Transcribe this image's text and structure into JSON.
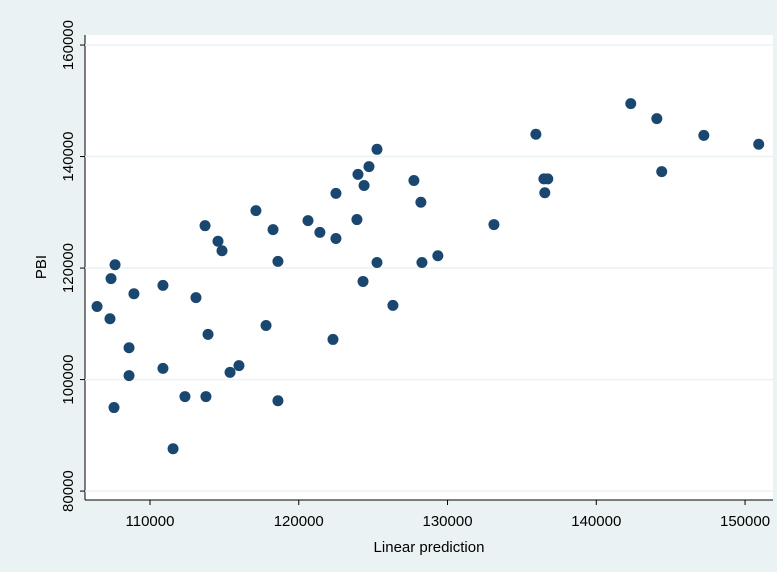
{
  "chart_data": {
    "type": "scatter",
    "x_label": "Linear prediction",
    "y_label": "PBI",
    "color": "#1a476f",
    "grid": true,
    "xlim": [
      105630,
      151880
    ],
    "ylim": [
      78400,
      161800
    ],
    "xticks": [
      110000,
      120000,
      130000,
      140000,
      150000
    ],
    "yticks": [
      80000,
      100000,
      120000,
      140000,
      160000
    ],
    "x": [
      106440,
      107380,
      107310,
      107650,
      107580,
      108920,
      108590,
      108590,
      110870,
      110870,
      111550,
      112350,
      113090,
      113700,
      113900,
      113760,
      114570,
      114840,
      115380,
      115980,
      117120,
      117800,
      118270,
      118600,
      118600,
      120620,
      121420,
      122500,
      122500,
      122300,
      123980,
      123910,
      124320,
      124390,
      124720,
      125260,
      125260,
      126330,
      127740,
      128210,
      128280,
      129350,
      133120,
      135940,
      136480,
      136540,
      136740,
      142320,
      144070,
      144400,
      147230,
      150920
    ],
    "values": [
      113100,
      118100,
      110900,
      120600,
      94980,
      115400,
      105700,
      100700,
      116900,
      102000,
      87600,
      96950,
      114700,
      127600,
      108100,
      96950,
      124800,
      123100,
      101300,
      102500,
      130300,
      109700,
      126900,
      121200,
      96200,
      128500,
      126400,
      133400,
      125300,
      107200,
      136800,
      128700,
      117600,
      134800,
      138200,
      141300,
      121000,
      113300,
      135700,
      131800,
      121000,
      122200,
      127800,
      144000,
      136000,
      133500,
      136000,
      149500,
      146800,
      137300,
      143800,
      142200
    ]
  }
}
